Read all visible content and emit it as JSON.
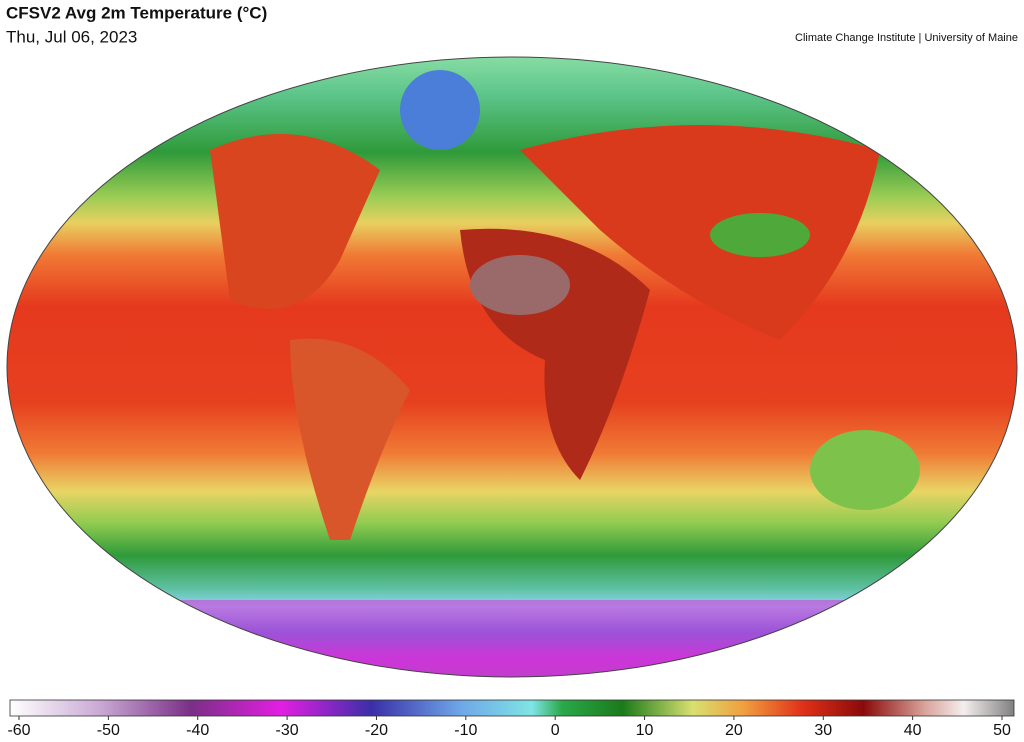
{
  "title": "CFSV2 Avg 2m Temperature (°C)",
  "subtitle": "Thu, Jul 06, 2023",
  "credit": "Climate Change Institute | University of Maine",
  "colorbar": {
    "lim": [
      -60,
      50
    ],
    "ticks": [
      -60,
      -50,
      -40,
      -30,
      -20,
      -10,
      0,
      10,
      20,
      30,
      40,
      50
    ]
  }
}
